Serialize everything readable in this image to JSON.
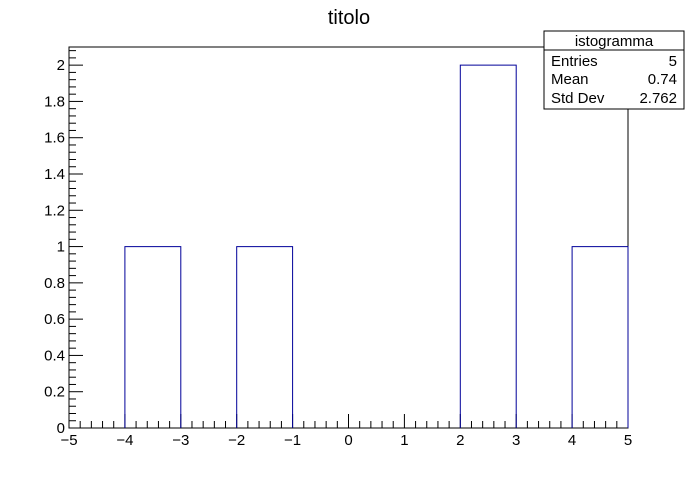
{
  "chart_data": {
    "type": "bar",
    "title": "titolo",
    "xlabel": "",
    "ylabel": "",
    "bin_edges": [
      -5,
      -4,
      -3,
      -2,
      -1,
      0,
      1,
      2,
      3,
      4,
      5
    ],
    "values": [
      0,
      1,
      0,
      1,
      0,
      0,
      0,
      2,
      0,
      1
    ],
    "xlim": [
      -5,
      5
    ],
    "ylim": [
      0,
      2.1
    ],
    "x_ticks": [
      "−5",
      "−4",
      "−3",
      "−2",
      "−1",
      "0",
      "1",
      "2",
      "3",
      "4",
      "5"
    ],
    "y_ticks": [
      "0",
      "0.2",
      "0.4",
      "0.6",
      "0.8",
      "1",
      "1.2",
      "1.4",
      "1.6",
      "1.8",
      "2"
    ],
    "grid": false,
    "bar_color": "#000099"
  },
  "stats_box": {
    "title": "istogramma",
    "rows": [
      {
        "label": "Entries",
        "value": "5"
      },
      {
        "label": "Mean",
        "value": "0.74"
      },
      {
        "label": "Std Dev",
        "value": "2.762"
      }
    ]
  }
}
